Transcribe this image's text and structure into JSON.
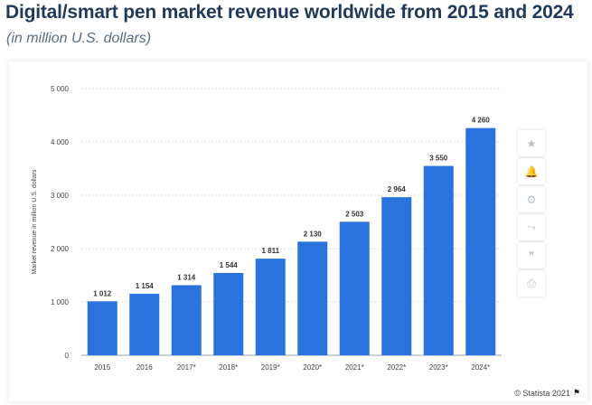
{
  "title": "Digital/smart pen market revenue worldwide from 2015 and 2024",
  "subtitle": "(in million U.S. dollars)",
  "credit": "© Statista 2021",
  "toolbar": [
    {
      "name": "star-icon",
      "glyph": "★"
    },
    {
      "name": "bell-icon",
      "glyph": "🔔"
    },
    {
      "name": "gear-icon",
      "glyph": "⚙"
    },
    {
      "name": "share-icon",
      "glyph": "⤳"
    },
    {
      "name": "quote-icon",
      "glyph": "❞"
    },
    {
      "name": "print-icon",
      "glyph": "⎙"
    }
  ],
  "colors": {
    "bar": "#2a72de",
    "grid": "#dcdfe3",
    "text": "#444444"
  },
  "chart_data": {
    "type": "bar",
    "categories": [
      "2015",
      "2016",
      "2017*",
      "2018*",
      "2019*",
      "2020*",
      "2021*",
      "2022*",
      "2023*",
      "2024*"
    ],
    "values": [
      1012,
      1154,
      1314,
      1544,
      1811,
      2130,
      2503,
      2964,
      3550,
      4260
    ],
    "value_labels": [
      "1 012",
      "1 154",
      "1 314",
      "1 544",
      "1 811",
      "2 130",
      "2 503",
      "2 964",
      "3 550",
      "4 260"
    ],
    "yticks": [
      0,
      1000,
      2000,
      3000,
      4000,
      5000
    ],
    "ytick_labels": [
      "0",
      "1 000",
      "2 000",
      "3 000",
      "4 000",
      "5 000"
    ],
    "ylim": [
      0,
      5000
    ],
    "xlabel": "",
    "ylabel": "Market revenue in million U.S. dollars",
    "grid": true
  }
}
